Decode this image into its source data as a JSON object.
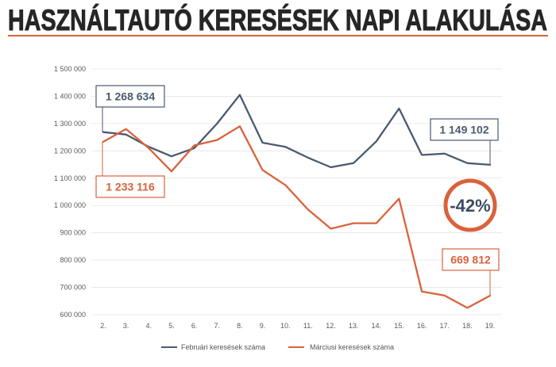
{
  "theme": {
    "title_color": "#262626",
    "accent": "#d9623b"
  },
  "chart_data": {
    "type": "line",
    "title": "HASZNÁLTAUTÓ KERESÉSEK NAPI ALAKULÁSA",
    "categories": [
      "2.",
      "3.",
      "4.",
      "5.",
      "6.",
      "7.",
      "8.",
      "9.",
      "10.",
      "11.",
      "12.",
      "13.",
      "14.",
      "15.",
      "16.",
      "17.",
      "18.",
      "19."
    ],
    "series": [
      {
        "name": "Februári keresések száma",
        "color": "#4a5b70",
        "values": [
          1268634,
          1260000,
          1215000,
          1180000,
          1210000,
          1300000,
          1405000,
          1230000,
          1215000,
          1175000,
          1140000,
          1155000,
          1235000,
          1355000,
          1185000,
          1190000,
          1155000,
          1149102
        ]
      },
      {
        "name": "Márciusi keresések száma",
        "color": "#d9623b",
        "values": [
          1233116,
          1280000,
          1210000,
          1125000,
          1220000,
          1240000,
          1290000,
          1130000,
          1075000,
          985000,
          915000,
          935000,
          935000,
          1025000,
          685000,
          670000,
          625000,
          669812
        ]
      }
    ],
    "ylim": [
      600000,
      1500000
    ],
    "yticks": [
      600000,
      700000,
      800000,
      900000,
      1000000,
      1100000,
      1200000,
      1300000,
      1400000,
      1500000
    ],
    "ytick_labels": [
      "600 000",
      "700 000",
      "800 000",
      "900 000",
      "1 000 000",
      "1 100 000",
      "1 200 000",
      "1 300 000",
      "1 400 000",
      "1 500 000"
    ],
    "grid": true,
    "legend": "bottom",
    "annotations": [
      {
        "text": "1 268 634",
        "series": 0,
        "index": 0
      },
      {
        "text": "1 233 116",
        "series": 1,
        "index": 0
      },
      {
        "text": "1 149 102",
        "series": 0,
        "index": 17
      },
      {
        "text": "669 812",
        "series": 1,
        "index": 17
      }
    ],
    "callout": "-42%"
  }
}
